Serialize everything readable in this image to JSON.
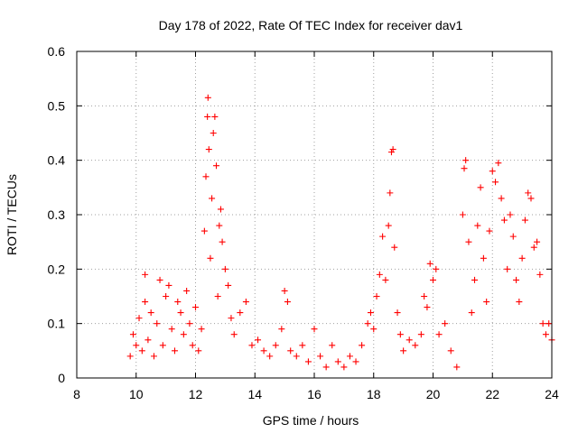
{
  "chart_data": {
    "type": "scatter",
    "title": "Day 178 of 2022, Rate Of TEC Index for receiver dav1",
    "xlabel": "GPS time / hours",
    "ylabel": "ROTI / TECUs",
    "xlim": [
      8,
      24
    ],
    "ylim": [
      0,
      0.6
    ],
    "x_ticks": [
      "8",
      "10",
      "12",
      "14",
      "16",
      "18",
      "20",
      "22",
      "24"
    ],
    "y_ticks": [
      "0",
      "0.1",
      "0.2",
      "0.3",
      "0.4",
      "0.5",
      "0.6"
    ],
    "grid": true,
    "marker": "plus",
    "color": "#ff0000",
    "series": [
      {
        "name": "ROTI",
        "points": [
          [
            9.8,
            0.04
          ],
          [
            9.9,
            0.08
          ],
          [
            10.0,
            0.06
          ],
          [
            10.1,
            0.11
          ],
          [
            10.2,
            0.05
          ],
          [
            10.3,
            0.14
          ],
          [
            10.3,
            0.19
          ],
          [
            10.4,
            0.07
          ],
          [
            10.5,
            0.12
          ],
          [
            10.6,
            0.04
          ],
          [
            10.7,
            0.1
          ],
          [
            10.8,
            0.18
          ],
          [
            10.9,
            0.06
          ],
          [
            11.0,
            0.15
          ],
          [
            11.1,
            0.17
          ],
          [
            11.2,
            0.09
          ],
          [
            11.3,
            0.05
          ],
          [
            11.4,
            0.14
          ],
          [
            11.5,
            0.12
          ],
          [
            11.6,
            0.08
          ],
          [
            11.7,
            0.16
          ],
          [
            11.8,
            0.1
          ],
          [
            11.9,
            0.06
          ],
          [
            12.0,
            0.13
          ],
          [
            12.1,
            0.05
          ],
          [
            12.2,
            0.09
          ],
          [
            12.3,
            0.27
          ],
          [
            12.35,
            0.37
          ],
          [
            12.4,
            0.48
          ],
          [
            12.42,
            0.515
          ],
          [
            12.45,
            0.42
          ],
          [
            12.5,
            0.22
          ],
          [
            12.55,
            0.33
          ],
          [
            12.6,
            0.45
          ],
          [
            12.65,
            0.48
          ],
          [
            12.7,
            0.39
          ],
          [
            12.75,
            0.15
          ],
          [
            12.8,
            0.28
          ],
          [
            12.85,
            0.31
          ],
          [
            12.9,
            0.25
          ],
          [
            13.0,
            0.2
          ],
          [
            13.1,
            0.17
          ],
          [
            13.2,
            0.11
          ],
          [
            13.3,
            0.08
          ],
          [
            13.5,
            0.12
          ],
          [
            13.7,
            0.14
          ],
          [
            13.9,
            0.06
          ],
          [
            14.1,
            0.07
          ],
          [
            14.3,
            0.05
          ],
          [
            14.5,
            0.04
          ],
          [
            14.7,
            0.06
          ],
          [
            14.9,
            0.09
          ],
          [
            15.0,
            0.16
          ],
          [
            15.1,
            0.14
          ],
          [
            15.2,
            0.05
          ],
          [
            15.4,
            0.04
          ],
          [
            15.6,
            0.06
          ],
          [
            15.8,
            0.03
          ],
          [
            16.0,
            0.09
          ],
          [
            16.2,
            0.04
          ],
          [
            16.4,
            0.02
          ],
          [
            16.6,
            0.06
          ],
          [
            16.8,
            0.03
          ],
          [
            17.0,
            0.02
          ],
          [
            17.2,
            0.04
          ],
          [
            17.4,
            0.03
          ],
          [
            17.6,
            0.06
          ],
          [
            17.8,
            0.1
          ],
          [
            17.9,
            0.12
          ],
          [
            18.0,
            0.09
          ],
          [
            18.1,
            0.15
          ],
          [
            18.2,
            0.19
          ],
          [
            18.3,
            0.26
          ],
          [
            18.4,
            0.18
          ],
          [
            18.5,
            0.28
          ],
          [
            18.55,
            0.34
          ],
          [
            18.6,
            0.415
          ],
          [
            18.65,
            0.42
          ],
          [
            18.7,
            0.24
          ],
          [
            18.8,
            0.12
          ],
          [
            18.9,
            0.08
          ],
          [
            19.0,
            0.05
          ],
          [
            19.2,
            0.07
          ],
          [
            19.4,
            0.06
          ],
          [
            19.6,
            0.08
          ],
          [
            19.7,
            0.15
          ],
          [
            19.8,
            0.13
          ],
          [
            19.9,
            0.21
          ],
          [
            20.0,
            0.18
          ],
          [
            20.1,
            0.2
          ],
          [
            20.2,
            0.08
          ],
          [
            20.4,
            0.1
          ],
          [
            20.6,
            0.05
          ],
          [
            20.8,
            0.02
          ],
          [
            21.0,
            0.3
          ],
          [
            21.05,
            0.385
          ],
          [
            21.1,
            0.4
          ],
          [
            21.2,
            0.25
          ],
          [
            21.3,
            0.12
          ],
          [
            21.4,
            0.18
          ],
          [
            21.5,
            0.28
          ],
          [
            21.6,
            0.35
          ],
          [
            21.7,
            0.22
          ],
          [
            21.8,
            0.14
          ],
          [
            21.9,
            0.27
          ],
          [
            22.0,
            0.38
          ],
          [
            22.1,
            0.36
          ],
          [
            22.2,
            0.395
          ],
          [
            22.3,
            0.33
          ],
          [
            22.4,
            0.29
          ],
          [
            22.5,
            0.2
          ],
          [
            22.6,
            0.3
          ],
          [
            22.7,
            0.26
          ],
          [
            22.8,
            0.18
          ],
          [
            22.9,
            0.14
          ],
          [
            23.0,
            0.22
          ],
          [
            23.1,
            0.29
          ],
          [
            23.2,
            0.34
          ],
          [
            23.3,
            0.33
          ],
          [
            23.4,
            0.24
          ],
          [
            23.5,
            0.25
          ],
          [
            23.6,
            0.19
          ],
          [
            23.7,
            0.1
          ],
          [
            23.8,
            0.08
          ],
          [
            23.9,
            0.1
          ],
          [
            24.0,
            0.07
          ]
        ]
      }
    ]
  }
}
